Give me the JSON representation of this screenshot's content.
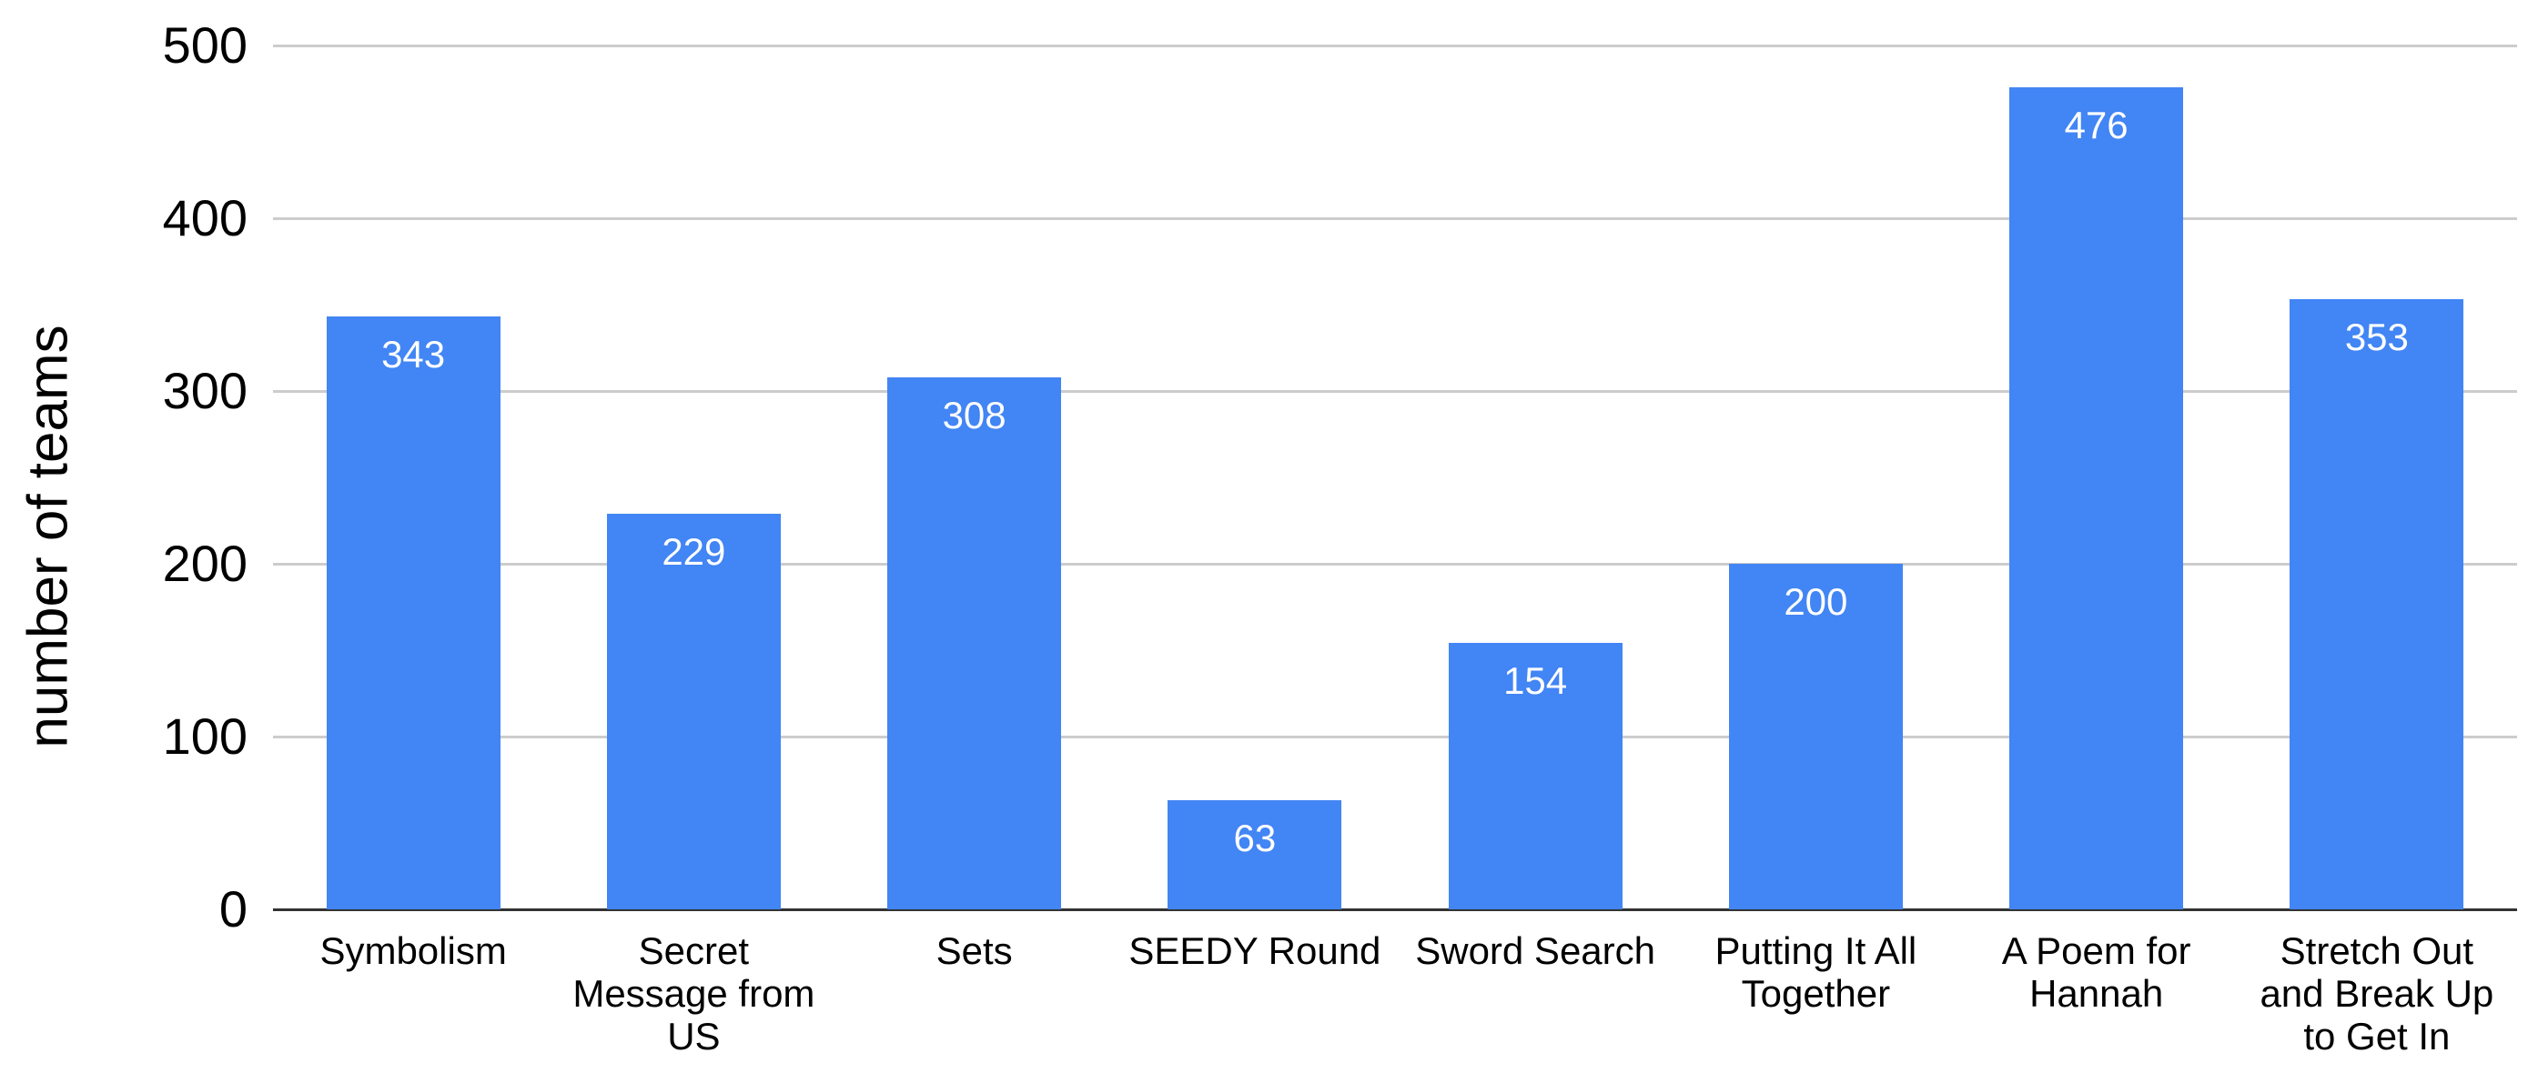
{
  "chart_data": {
    "type": "bar",
    "title": "",
    "xlabel": "",
    "ylabel": "number of teams",
    "categories": [
      "Symbolism",
      "Secret Message from US",
      "Sets",
      "SEEDY Round",
      "Sword Search",
      "Putting It All Together",
      "A Poem for Hannah",
      "Stretch Out and Break Up to Get In"
    ],
    "category_label_lines": [
      [
        "Symbolism"
      ],
      [
        "Secret",
        "Message from",
        "US"
      ],
      [
        "Sets"
      ],
      [
        "SEEDY Round"
      ],
      [
        "Sword Search"
      ],
      [
        "Putting It All",
        "Together"
      ],
      [
        "A Poem for",
        "Hannah"
      ],
      [
        "Stretch Out",
        "and Break Up",
        "to Get In"
      ]
    ],
    "values": [
      343,
      229,
      308,
      63,
      154,
      200,
      476,
      353
    ],
    "ylim": [
      0,
      500
    ],
    "yticks": [
      0,
      100,
      200,
      300,
      400,
      500
    ],
    "grid": true,
    "legend": "none",
    "bar_color": "#4285f4",
    "value_label_color": "#ffffff",
    "axis_text_color": "#000000",
    "gridline_color": "#cccccc",
    "baseline_color": "#333333",
    "background": "#ffffff"
  }
}
